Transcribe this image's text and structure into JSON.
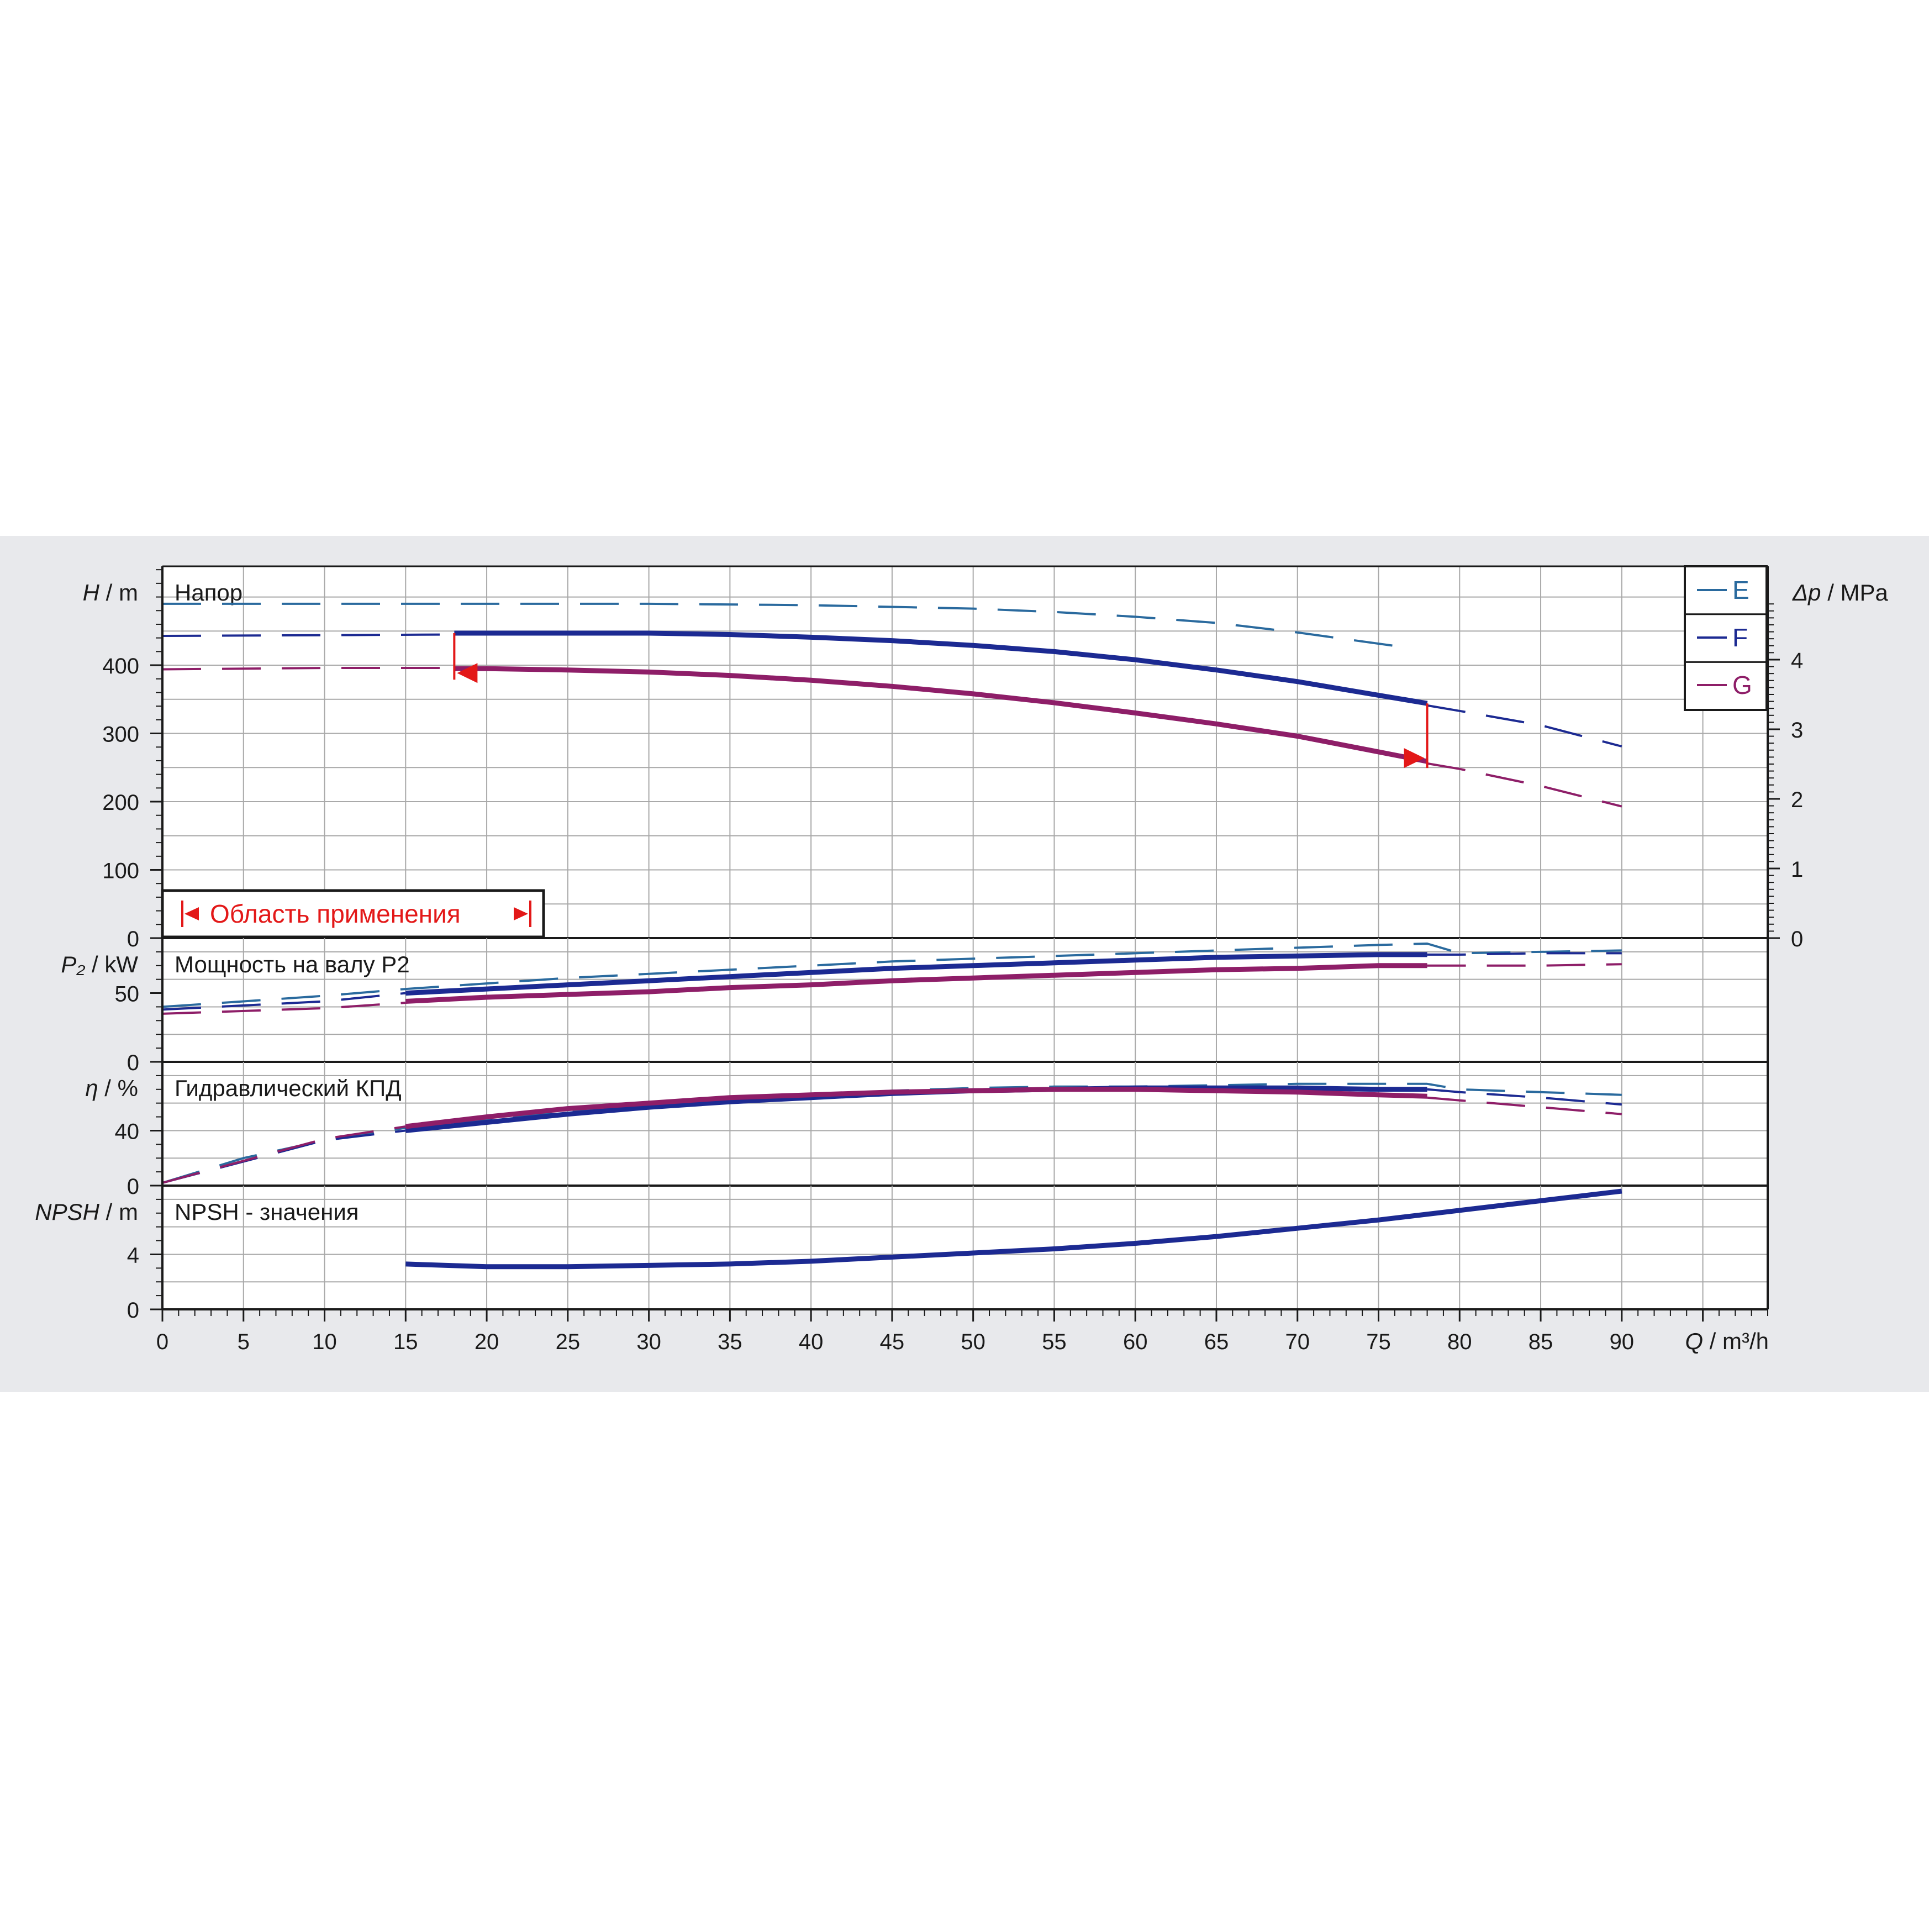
{
  "colors": {
    "band_background": "#e8e9ec",
    "plot_background": "#ffffff",
    "grid": "#a9a9a9",
    "axis": "#1a1a1a",
    "series_E": "#2a6a9e",
    "series_F": "#1c2a92",
    "series_G": "#8e1e68",
    "range_marker": "#e31818"
  },
  "legend": {
    "items": [
      "E",
      "F",
      "G"
    ],
    "placement": "top-right"
  },
  "range_label": "Область применения",
  "x_axis": {
    "label_italic": "Q",
    "label_unit": " / m³/h",
    "ticks": [
      0,
      5,
      10,
      15,
      20,
      25,
      30,
      35,
      40,
      45,
      50,
      55,
      60,
      65,
      70,
      75,
      80,
      85,
      90
    ],
    "range": [
      0,
      99
    ]
  },
  "chart_data": [
    {
      "type": "line",
      "title": "Напор",
      "ylabel_italic": "H",
      "ylabel_unit": " / m",
      "ylim": [
        0,
        545
      ],
      "yticks": [
        0,
        100,
        200,
        300,
        400
      ],
      "right_axis": {
        "label_italic": "Δp",
        "label_unit": " / MPa",
        "ticks": [
          0,
          1,
          2,
          3,
          4
        ],
        "mpa_per_meter": 0.0098
      },
      "grid": true,
      "series": [
        {
          "name": "E",
          "style": "dashed",
          "x": [
            0,
            10,
            20,
            30,
            40,
            50,
            55,
            60,
            65,
            70,
            77
          ],
          "y": [
            490,
            490,
            490,
            490,
            488,
            483,
            478,
            471,
            462,
            448,
            425
          ]
        },
        {
          "name": "F",
          "style": "dashed",
          "x": [
            0,
            10,
            18
          ],
          "y": [
            443,
            444,
            445
          ]
        },
        {
          "name": "F",
          "style": "solid",
          "x": [
            18,
            25,
            30,
            35,
            40,
            45,
            50,
            55,
            60,
            65,
            70,
            75,
            78
          ],
          "y": [
            447,
            447,
            447,
            445,
            441,
            436,
            429,
            420,
            408,
            393,
            376,
            356,
            344
          ]
        },
        {
          "name": "F",
          "style": "dashed",
          "x": [
            78,
            80,
            85,
            90
          ],
          "y": [
            341,
            333,
            312,
            281
          ]
        },
        {
          "name": "G",
          "style": "dashed",
          "x": [
            0,
            10,
            18
          ],
          "y": [
            394,
            396,
            396
          ]
        },
        {
          "name": "G",
          "style": "solid",
          "x": [
            18,
            20,
            25,
            30,
            35,
            40,
            45,
            50,
            55,
            60,
            65,
            70,
            75,
            78
          ],
          "y": [
            395,
            395,
            393,
            390,
            385,
            378,
            369,
            358,
            345,
            330,
            314,
            296,
            273,
            259
          ]
        },
        {
          "name": "G",
          "style": "dashed",
          "x": [
            78,
            80,
            85,
            90
          ],
          "y": [
            256,
            248,
            223,
            193
          ]
        }
      ],
      "range_markers": {
        "q_min": 18,
        "q_max": 78
      }
    },
    {
      "type": "line",
      "title": "Мощность на валу P2",
      "ylabel_italic": "P₂",
      "ylabel_unit": " / kW",
      "ylim": [
        0,
        90
      ],
      "yticks": [
        0,
        50
      ],
      "grid": true,
      "series": [
        {
          "name": "E",
          "style": "dashed",
          "x": [
            0,
            5,
            10,
            15,
            20,
            25,
            30,
            35,
            40,
            45,
            50,
            55,
            60,
            65,
            70,
            75,
            78,
            80,
            85,
            90
          ],
          "y": [
            40,
            44,
            48,
            53,
            57,
            61,
            64,
            67,
            70,
            73,
            75,
            77,
            79,
            81,
            83,
            85,
            86,
            79,
            80,
            81
          ]
        },
        {
          "name": "F",
          "style": "dashed",
          "x": [
            0,
            10,
            15
          ],
          "y": [
            38,
            44,
            50
          ]
        },
        {
          "name": "F",
          "style": "solid",
          "x": [
            15,
            20,
            25,
            30,
            35,
            40,
            45,
            50,
            55,
            60,
            65,
            70,
            75,
            78
          ],
          "y": [
            50,
            53,
            56,
            59,
            62,
            65,
            68,
            70,
            72,
            74,
            76,
            77,
            78,
            78
          ]
        },
        {
          "name": "F",
          "style": "dashed",
          "x": [
            78,
            80,
            85,
            90
          ],
          "y": [
            78,
            78,
            79,
            79
          ]
        },
        {
          "name": "G",
          "style": "dashed",
          "x": [
            0,
            10,
            15
          ],
          "y": [
            35,
            39,
            43
          ]
        },
        {
          "name": "G",
          "style": "solid",
          "x": [
            15,
            20,
            25,
            30,
            35,
            40,
            45,
            50,
            55,
            60,
            65,
            70,
            75,
            78
          ],
          "y": [
            44,
            47,
            49,
            51,
            54,
            56,
            59,
            61,
            63,
            65,
            67,
            68,
            70,
            70
          ]
        },
        {
          "name": "G",
          "style": "dashed",
          "x": [
            78,
            80,
            85,
            90
          ],
          "y": [
            70,
            70,
            70,
            71
          ]
        }
      ]
    },
    {
      "type": "line",
      "title": "Гидравлический КПД",
      "ylabel_italic": "η",
      "ylabel_unit": " / %",
      "ylim": [
        0,
        90
      ],
      "yticks": [
        0,
        40
      ],
      "grid": true,
      "series": [
        {
          "name": "E",
          "style": "dashed",
          "x": [
            0,
            5,
            10,
            15,
            20,
            25,
            30,
            35,
            40,
            45,
            50,
            55,
            60,
            65,
            70,
            75,
            78,
            80,
            85,
            90
          ],
          "y": [
            2,
            20,
            33,
            42,
            48,
            54,
            59,
            63,
            66,
            69,
            71,
            72,
            72,
            73,
            74,
            74,
            74,
            70,
            68,
            66
          ]
        },
        {
          "name": "F",
          "style": "dashed",
          "x": [
            0,
            10,
            15
          ],
          "y": [
            2,
            33,
            40
          ]
        },
        {
          "name": "F",
          "style": "solid",
          "x": [
            15,
            20,
            25,
            30,
            35,
            40,
            45,
            50,
            55,
            60,
            65,
            70,
            75,
            78
          ],
          "y": [
            40,
            46,
            52,
            57,
            61,
            64,
            67,
            69,
            70,
            71,
            71,
            71,
            70,
            70
          ]
        },
        {
          "name": "F",
          "style": "dashed",
          "x": [
            78,
            80,
            85,
            90
          ],
          "y": [
            70,
            68,
            64,
            59
          ]
        },
        {
          "name": "G",
          "style": "dashed",
          "x": [
            0,
            10,
            15
          ],
          "y": [
            2,
            34,
            43
          ]
        },
        {
          "name": "G",
          "style": "solid",
          "x": [
            15,
            20,
            25,
            30,
            35,
            40,
            45,
            50,
            55,
            60,
            65,
            70,
            75,
            78
          ],
          "y": [
            43,
            50,
            56,
            60,
            64,
            66,
            68,
            69,
            70,
            70,
            69,
            68,
            66,
            65
          ]
        },
        {
          "name": "G",
          "style": "dashed",
          "x": [
            78,
            80,
            85,
            90
          ],
          "y": [
            64,
            62,
            57,
            52
          ]
        }
      ]
    },
    {
      "type": "line",
      "title": "NPSH - значения",
      "ylabel_italic": "NPSH",
      "ylabel_unit": " / m",
      "ylim": [
        0,
        9
      ],
      "yticks": [
        0,
        4
      ],
      "grid": true,
      "series": [
        {
          "name": "F",
          "style": "solid",
          "x": [
            15,
            20,
            25,
            30,
            35,
            40,
            45,
            50,
            55,
            60,
            65,
            70,
            75,
            80,
            85,
            90
          ],
          "y": [
            3.3,
            3.1,
            3.1,
            3.2,
            3.3,
            3.5,
            3.8,
            4.1,
            4.4,
            4.8,
            5.3,
            5.9,
            6.5,
            7.2,
            7.9,
            8.6
          ]
        }
      ]
    }
  ]
}
